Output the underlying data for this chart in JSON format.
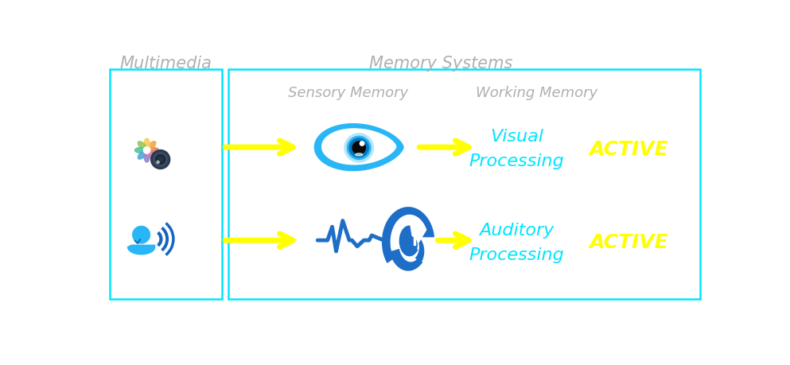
{
  "bg_color": "#ffffff",
  "title_multimedia": "Multimedia",
  "title_memory": "Memory Systems",
  "title_sensory": "Sensory Memory",
  "title_working": "Working Memory",
  "label_visual_1": "Visual",
  "label_visual_2": "Processing",
  "label_auditory_1": "Auditory",
  "label_auditory_2": "Processing",
  "label_active": "Active",
  "cyan_color": "#00e5ff",
  "yellow_color": "#ffff00",
  "gray_color": "#b0b0b0",
  "box_edge_color": "#00e5ff",
  "eye_outer_color": "#29b6f6",
  "eye_iris_color": "#0288d1",
  "ear_color": "#1e6ec8",
  "wave_color": "#1e6ec8",
  "photos_colors": [
    "#e8855a",
    "#f4a354",
    "#f7c96e",
    "#a8c96e",
    "#6ec4b0",
    "#6eb0d4",
    "#9b84c4",
    "#d480a0"
  ],
  "fig_width": 9.93,
  "fig_height": 4.6
}
